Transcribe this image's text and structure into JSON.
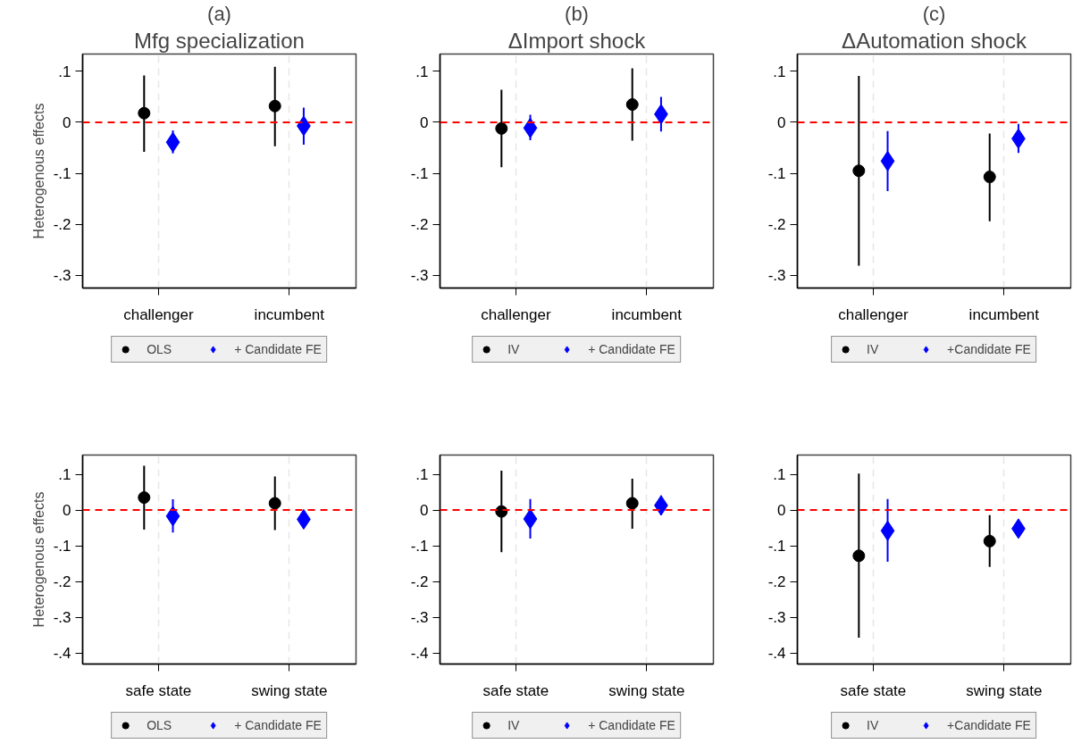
{
  "chart_data": [
    {
      "type": "scatter",
      "title": "(a)",
      "subtitle": "Mfg specialization",
      "ylabel": "Heterogenous effects",
      "categories": [
        "challenger",
        "incumbent"
      ],
      "series": [
        {
          "name": "OLS",
          "color": "#000000",
          "marker": "circle",
          "values": [
            0.018,
            0.032
          ],
          "errors": [
            [
              -0.058,
              0.092
            ],
            [
              -0.047,
              0.109
            ]
          ]
        },
        {
          "name": "+ Candidate FE",
          "color": "#0000ff",
          "marker": "diamond",
          "values": [
            -0.039,
            -0.007
          ],
          "errors": [
            [
              -0.061,
              -0.016
            ],
            [
              -0.044,
              0.029
            ]
          ]
        }
      ],
      "ylim": [
        -0.325,
        0.134
      ],
      "yticks": [
        {
          "value": 0.1,
          "label": ".1"
        },
        0,
        {
          "value": -0.1,
          "label": "-.1"
        },
        {
          "value": -0.2,
          "label": "-.2"
        },
        {
          "value": -0.3,
          "label": "-.3"
        }
      ],
      "ref_lines": [
        {
          "axis": "y",
          "value": 0,
          "label": null,
          "color": "#ff0000",
          "line_style": "dashed"
        }
      ],
      "grid": "x",
      "legend": "bottom"
    },
    {
      "type": "scatter",
      "title": "(b)",
      "subtitle": "ΔImport shock",
      "categories": [
        "challenger",
        "incumbent"
      ],
      "series": [
        {
          "name": "IV",
          "color": "#000000",
          "marker": "circle",
          "values": [
            -0.012,
            0.035
          ],
          "errors": [
            [
              -0.088,
              0.064
            ],
            [
              -0.036,
              0.106
            ]
          ]
        },
        {
          "name": "+ Candidate FE",
          "color": "#0000ff",
          "marker": "diamond",
          "values": [
            -0.011,
            0.016
          ],
          "errors": [
            [
              -0.035,
              0.015
            ],
            [
              -0.018,
              0.05
            ]
          ]
        }
      ],
      "ylim": [
        -0.325,
        0.134
      ],
      "yticks": [
        {
          "value": 0.1,
          "label": ".1"
        },
        0,
        {
          "value": -0.1,
          "label": "-.1"
        },
        {
          "value": -0.2,
          "label": "-.2"
        },
        {
          "value": -0.3,
          "label": "-.3"
        }
      ],
      "ref_lines": [
        {
          "axis": "y",
          "value": 0,
          "label": null,
          "color": "#ff0000",
          "line_style": "dashed"
        }
      ],
      "grid": "x",
      "legend": "bottom"
    },
    {
      "type": "scatter",
      "title": "(c)",
      "subtitle": "ΔAutomation shock",
      "categories": [
        "challenger",
        "incumbent"
      ],
      "series": [
        {
          "name": "IV",
          "color": "#000000",
          "marker": "circle",
          "values": [
            -0.095,
            -0.107
          ],
          "errors": [
            [
              -0.281,
              0.091
            ],
            [
              -0.194,
              -0.022
            ]
          ]
        },
        {
          "name": "+Candidate FE",
          "color": "#0000ff",
          "marker": "diamond",
          "values": [
            -0.076,
            -0.032
          ],
          "errors": [
            [
              -0.135,
              -0.017
            ],
            [
              -0.06,
              -0.003
            ]
          ]
        }
      ],
      "ylim": [
        -0.325,
        0.134
      ],
      "yticks": [
        {
          "value": 0.1,
          "label": ".1"
        },
        0,
        {
          "value": -0.1,
          "label": "-.1"
        },
        {
          "value": -0.2,
          "label": "-.2"
        },
        {
          "value": -0.3,
          "label": "-.3"
        }
      ],
      "ref_lines": [
        {
          "axis": "y",
          "value": 0,
          "label": null,
          "color": "#ff0000",
          "line_style": "dashed"
        }
      ],
      "grid": "x",
      "legend": "bottom"
    },
    {
      "type": "scatter",
      "ylabel": "Heterogenous effects",
      "categories": [
        "safe state",
        "swing state"
      ],
      "series": [
        {
          "name": "OLS",
          "color": "#000000",
          "marker": "circle",
          "values": [
            0.035,
            0.019
          ],
          "errors": [
            [
              -0.055,
              0.124
            ],
            [
              -0.056,
              0.094
            ]
          ]
        },
        {
          "name": "+ Candidate FE",
          "color": "#0000ff",
          "marker": "diamond",
          "values": [
            -0.017,
            -0.026
          ],
          "errors": [
            [
              -0.063,
              0.03
            ],
            [
              -0.052,
              -0.002
            ]
          ]
        }
      ],
      "ylim": [
        -0.431,
        0.154
      ],
      "yticks": [
        {
          "value": 0.1,
          "label": ".1"
        },
        0,
        {
          "value": -0.1,
          "label": "-.1"
        },
        {
          "value": -0.2,
          "label": "-.2"
        },
        {
          "value": -0.3,
          "label": "-.3"
        },
        {
          "value": -0.4,
          "label": "-.4"
        }
      ],
      "ref_lines": [
        {
          "axis": "y",
          "value": 0,
          "label": null,
          "color": "#ff0000",
          "line_style": "dashed"
        }
      ],
      "grid": "x",
      "legend": "bottom"
    },
    {
      "type": "scatter",
      "categories": [
        "safe state",
        "swing state"
      ],
      "series": [
        {
          "name": "IV",
          "color": "#000000",
          "marker": "circle",
          "values": [
            -0.004,
            0.019
          ],
          "errors": [
            [
              -0.118,
              0.11
            ],
            [
              -0.052,
              0.088
            ]
          ]
        },
        {
          "name": "+ Candidate FE",
          "color": "#0000ff",
          "marker": "diamond",
          "values": [
            -0.025,
            0.013
          ],
          "errors": [
            [
              -0.08,
              0.031
            ],
            [
              -0.015,
              0.041
            ]
          ]
        }
      ],
      "ylim": [
        -0.431,
        0.154
      ],
      "yticks": [
        {
          "value": 0.1,
          "label": ".1"
        },
        0,
        {
          "value": -0.1,
          "label": "-.1"
        },
        {
          "value": -0.2,
          "label": "-.2"
        },
        {
          "value": -0.3,
          "label": "-.3"
        },
        {
          "value": -0.4,
          "label": "-.4"
        }
      ],
      "ref_lines": [
        {
          "axis": "y",
          "value": 0,
          "label": null,
          "color": "#ff0000",
          "line_style": "dashed"
        }
      ],
      "grid": "x",
      "legend": "bottom"
    },
    {
      "type": "scatter",
      "categories": [
        "safe state",
        "swing state"
      ],
      "series": [
        {
          "name": "IV",
          "color": "#000000",
          "marker": "circle",
          "values": [
            -0.128,
            -0.087
          ],
          "errors": [
            [
              -0.357,
              0.102
            ],
            [
              -0.159,
              -0.014
            ]
          ]
        },
        {
          "name": "+Candidate FE",
          "color": "#0000ff",
          "marker": "diamond",
          "values": [
            -0.058,
            -0.052
          ],
          "errors": [
            [
              -0.145,
              0.031
            ],
            [
              -0.075,
              -0.027
            ]
          ]
        }
      ],
      "ylim": [
        -0.431,
        0.154
      ],
      "yticks": [
        {
          "value": 0.1,
          "label": ".1"
        },
        0,
        {
          "value": -0.1,
          "label": "-.1"
        },
        {
          "value": -0.2,
          "label": "-.2"
        },
        {
          "value": -0.3,
          "label": "-.3"
        },
        {
          "value": -0.4,
          "label": "-.4"
        }
      ],
      "ref_lines": [
        {
          "axis": "y",
          "value": 0,
          "label": null,
          "color": "#ff0000",
          "line_style": "dashed"
        }
      ],
      "grid": "x",
      "legend": "bottom"
    }
  ]
}
